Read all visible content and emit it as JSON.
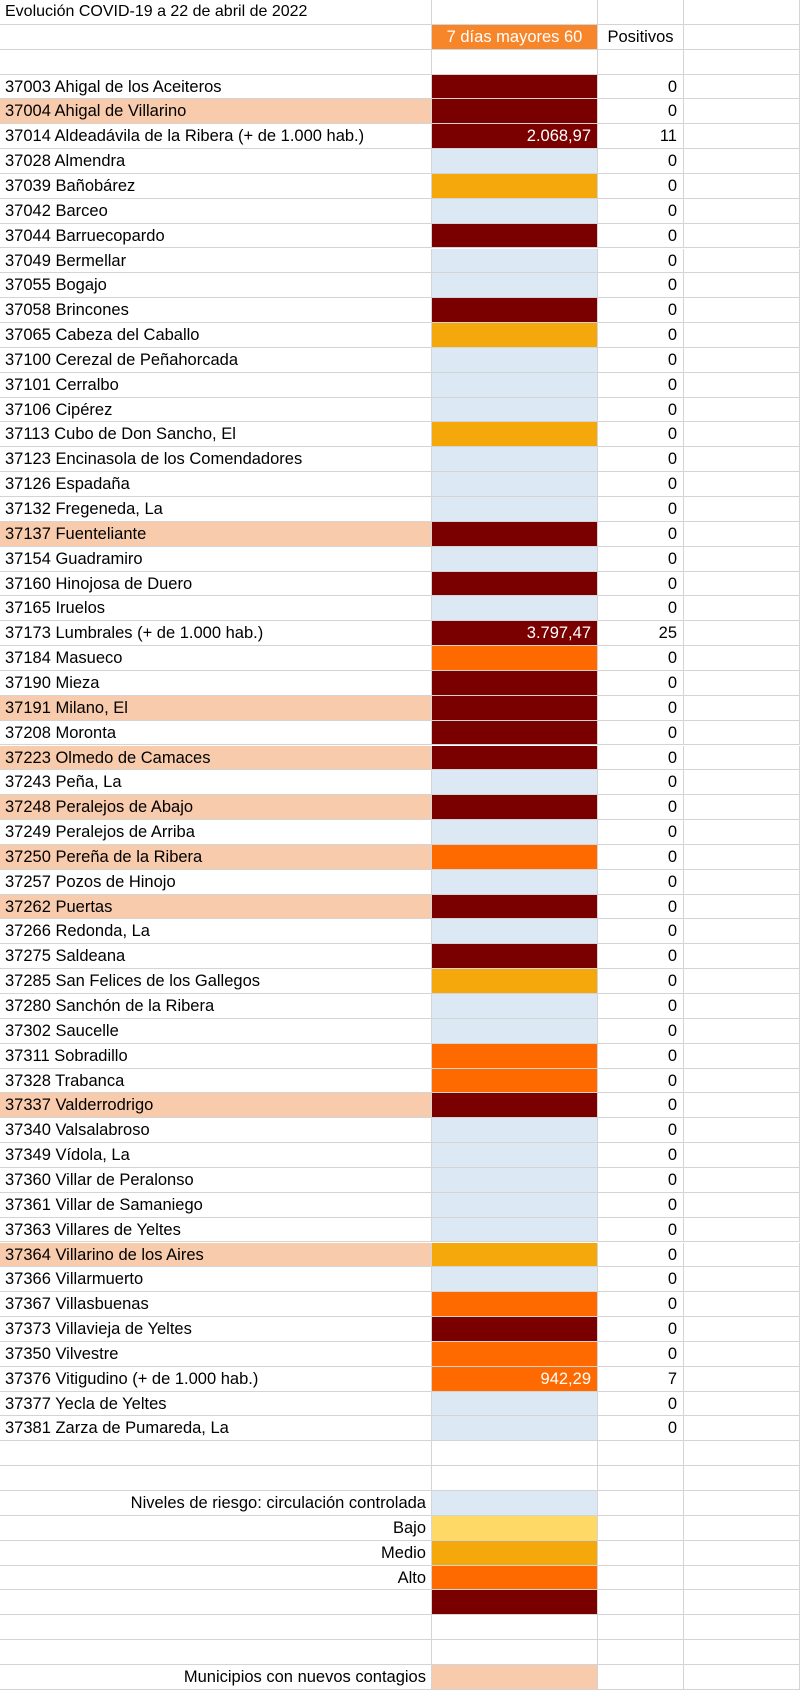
{
  "title": "Evolución COVID-19 a 22 de abril de 2022",
  "headers": {
    "incidence": "7 días mayores 60",
    "positives": "Positivos"
  },
  "colors": {
    "controlled": "#dce9f5",
    "low": "#ffd966",
    "medium": "#f5a80c",
    "high": "#ff6a00",
    "very_high": "#7a0000",
    "new_cases": "#f8cbad"
  },
  "rows": [
    {
      "name": "37003 Ahigal de los Aceiteros",
      "level": "very_high",
      "value": "",
      "positives": "0",
      "new": false
    },
    {
      "name": "37004 Ahigal de Villarino",
      "level": "very_high",
      "value": "",
      "positives": "0",
      "new": true
    },
    {
      "name": "37014 Aldeadávila de la Ribera  (+ de 1.000 hab.)",
      "level": "very_high",
      "value": "2.068,97",
      "positives": "11",
      "new": false
    },
    {
      "name": "37028 Almendra",
      "level": "controlled",
      "value": "",
      "positives": "0",
      "new": false
    },
    {
      "name": "37039 Bañobárez",
      "level": "medium",
      "value": "",
      "positives": "0",
      "new": false
    },
    {
      "name": "37042 Barceo",
      "level": "controlled",
      "value": "",
      "positives": "0",
      "new": false
    },
    {
      "name": "37044 Barruecopardo",
      "level": "very_high",
      "value": "",
      "positives": "0",
      "new": false
    },
    {
      "name": "37049 Bermellar",
      "level": "controlled",
      "value": "",
      "positives": "0",
      "new": false
    },
    {
      "name": "37055 Bogajo",
      "level": "controlled",
      "value": "",
      "positives": "0",
      "new": false
    },
    {
      "name": "37058 Brincones",
      "level": "very_high",
      "value": "",
      "positives": "0",
      "new": false
    },
    {
      "name": "37065 Cabeza del Caballo",
      "level": "medium",
      "value": "",
      "positives": "0",
      "new": false
    },
    {
      "name": "37100 Cerezal de Peñahorcada",
      "level": "controlled",
      "value": "",
      "positives": "0",
      "new": false
    },
    {
      "name": "37101 Cerralbo",
      "level": "controlled",
      "value": "",
      "positives": "0",
      "new": false
    },
    {
      "name": "37106 Cipérez",
      "level": "controlled",
      "value": "",
      "positives": "0",
      "new": false
    },
    {
      "name": "37113 Cubo de Don Sancho, El",
      "level": "medium",
      "value": "",
      "positives": "0",
      "new": false
    },
    {
      "name": "37123 Encinasola de los Comendadores",
      "level": "controlled",
      "value": "",
      "positives": "0",
      "new": false
    },
    {
      "name": "37126 Espadaña",
      "level": "controlled",
      "value": "",
      "positives": "0",
      "new": false
    },
    {
      "name": "37132 Fregeneda, La",
      "level": "controlled",
      "value": "",
      "positives": "0",
      "new": false
    },
    {
      "name": "37137 Fuenteliante",
      "level": "very_high",
      "value": "",
      "positives": "0",
      "new": true
    },
    {
      "name": "37154 Guadramiro",
      "level": "controlled",
      "value": "",
      "positives": "0",
      "new": false
    },
    {
      "name": "37160 Hinojosa de Duero",
      "level": "very_high",
      "value": "",
      "positives": "0",
      "new": false
    },
    {
      "name": "37165 Iruelos",
      "level": "controlled",
      "value": "",
      "positives": "0",
      "new": false
    },
    {
      "name": "37173 Lumbrales  (+ de 1.000 hab.)",
      "level": "very_high",
      "value": "3.797,47",
      "positives": "25",
      "new": false
    },
    {
      "name": "37184 Masueco",
      "level": "high",
      "value": "",
      "positives": "0",
      "new": false
    },
    {
      "name": "37190 Mieza",
      "level": "very_high",
      "value": "",
      "positives": "0",
      "new": false
    },
    {
      "name": "37191 Milano, El",
      "level": "very_high",
      "value": "",
      "positives": "0",
      "new": true
    },
    {
      "name": "37208 Moronta",
      "level": "very_high",
      "value": "",
      "positives": "0",
      "new": false
    },
    {
      "name": "37223 Olmedo de Camaces",
      "level": "very_high",
      "value": "",
      "positives": "0",
      "new": true
    },
    {
      "name": "37243 Peña, La",
      "level": "controlled",
      "value": "",
      "positives": "0",
      "new": false
    },
    {
      "name": "37248 Peralejos de Abajo",
      "level": "very_high",
      "value": "",
      "positives": "0",
      "new": true
    },
    {
      "name": "37249 Peralejos de Arriba",
      "level": "controlled",
      "value": "",
      "positives": "0",
      "new": false
    },
    {
      "name": "37250 Pereña de la Ribera",
      "level": "high",
      "value": "",
      "positives": "0",
      "new": true
    },
    {
      "name": "37257 Pozos de Hinojo",
      "level": "controlled",
      "value": "",
      "positives": "0",
      "new": false
    },
    {
      "name": "37262 Puertas",
      "level": "very_high",
      "value": "",
      "positives": "0",
      "new": true
    },
    {
      "name": "37266 Redonda, La",
      "level": "controlled",
      "value": "",
      "positives": "0",
      "new": false
    },
    {
      "name": "37275 Saldeana",
      "level": "very_high",
      "value": "",
      "positives": "0",
      "new": false
    },
    {
      "name": "37285 San Felices de los Gallegos",
      "level": "medium",
      "value": "",
      "positives": "0",
      "new": false
    },
    {
      "name": "37280 Sanchón de la Ribera",
      "level": "controlled",
      "value": "",
      "positives": "0",
      "new": false
    },
    {
      "name": "37302 Saucelle",
      "level": "controlled",
      "value": "",
      "positives": "0",
      "new": false
    },
    {
      "name": "37311 Sobradillo",
      "level": "high",
      "value": "",
      "positives": "0",
      "new": false
    },
    {
      "name": "37328 Trabanca",
      "level": "high",
      "value": "",
      "positives": "0",
      "new": false
    },
    {
      "name": "37337 Valderrodrigo",
      "level": "very_high",
      "value": "",
      "positives": "0",
      "new": true
    },
    {
      "name": "37340 Valsalabroso",
      "level": "controlled",
      "value": "",
      "positives": "0",
      "new": false
    },
    {
      "name": "37349 Vídola, La",
      "level": "controlled",
      "value": "",
      "positives": "0",
      "new": false
    },
    {
      "name": "37360 Villar de Peralonso",
      "level": "controlled",
      "value": "",
      "positives": "0",
      "new": false
    },
    {
      "name": "37361 Villar de Samaniego",
      "level": "controlled",
      "value": "",
      "positives": "0",
      "new": false
    },
    {
      "name": "37363 Villares de Yeltes",
      "level": "controlled",
      "value": "",
      "positives": "0",
      "new": false
    },
    {
      "name": "37364 Villarino de los Aires",
      "level": "medium",
      "value": "",
      "positives": "0",
      "new": true
    },
    {
      "name": "37366 Villarmuerto",
      "level": "controlled",
      "value": "",
      "positives": "0",
      "new": false
    },
    {
      "name": "37367 Villasbuenas",
      "level": "high",
      "value": "",
      "positives": "0",
      "new": false
    },
    {
      "name": "37373 Villavieja de Yeltes",
      "level": "very_high",
      "value": "",
      "positives": "0",
      "new": false
    },
    {
      "name": "37350 Vilvestre",
      "level": "high",
      "value": "",
      "positives": "0",
      "new": false
    },
    {
      "name": "37376 Vitigudino (+ de 1.000 hab.)",
      "level": "high",
      "value": "942,29",
      "positives": "7",
      "new": false
    },
    {
      "name": "37377 Yecla de Yeltes",
      "level": "controlled",
      "value": "",
      "positives": "0",
      "new": false
    },
    {
      "name": "37381 Zarza de Pumareda, La",
      "level": "controlled",
      "value": "",
      "positives": "0",
      "new": false
    }
  ],
  "legend": {
    "items": [
      {
        "label": "Niveles de riesgo:  circulación controlada",
        "level": "controlled"
      },
      {
        "label": "Bajo",
        "level": "low"
      },
      {
        "label": "Medio",
        "level": "medium"
      },
      {
        "label": "Alto",
        "level": "high"
      },
      {
        "label": "",
        "level": "very_high"
      }
    ],
    "new_cases_label": "Municipios con nuevos contagios"
  }
}
